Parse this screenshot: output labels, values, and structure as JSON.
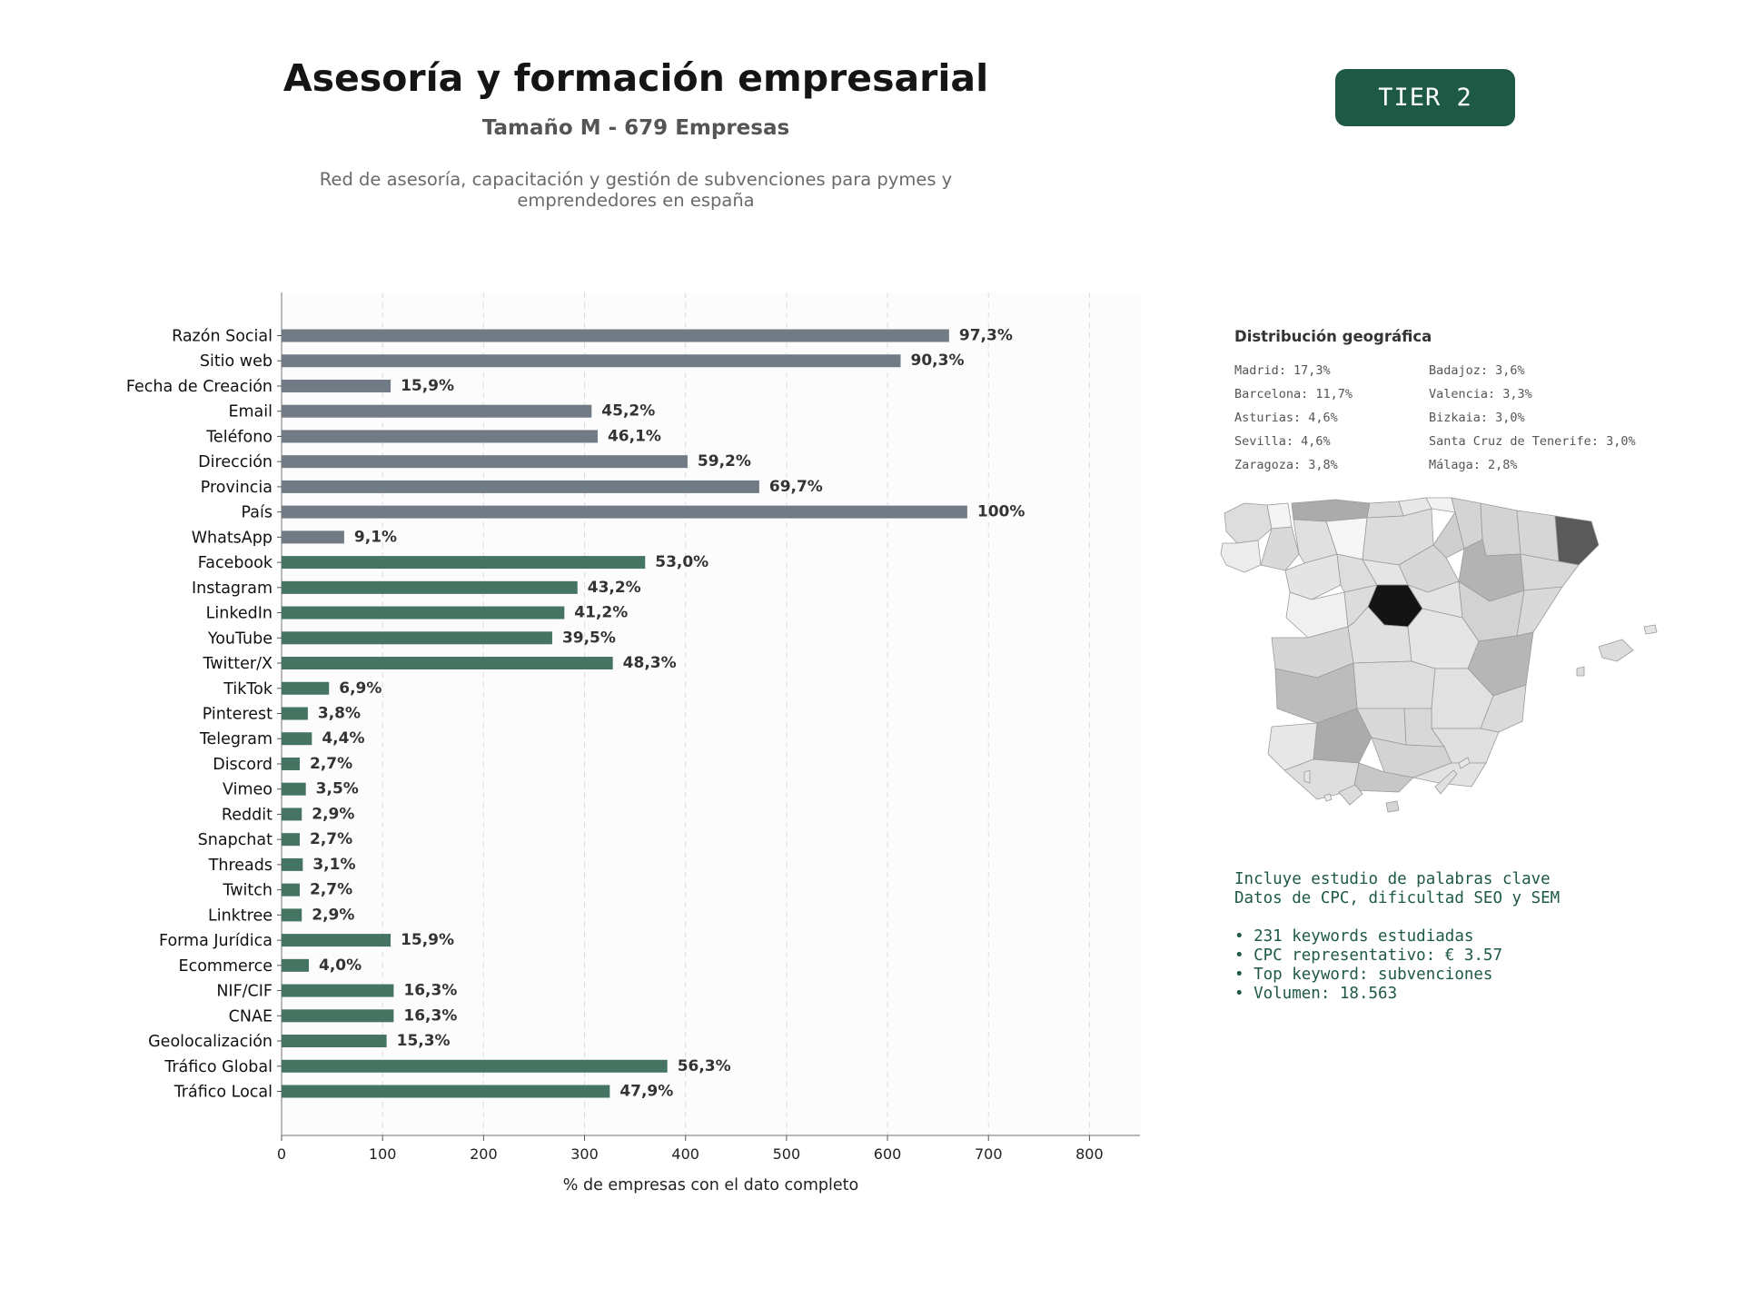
{
  "header": {
    "title": "Asesoría y formación empresarial",
    "subtitle": "Tamaño M - 679 Empresas",
    "description_lines": [
      "Red de asesoría, capacitación y gestión de subvenciones para pymes y",
      "emprendedores en españa"
    ],
    "tier_badge": "TIER 2"
  },
  "colors": {
    "accent": "#1e5946",
    "bar_gray": "#717b85",
    "bar_green": "#457462",
    "text_green": "#1e5946"
  },
  "chart_data": {
    "type": "bar",
    "orientation": "horizontal",
    "xlabel": "% de empresas con el dato completo",
    "ylabel": "",
    "xlim": [
      0,
      850
    ],
    "xticks": [
      0,
      100,
      200,
      300,
      400,
      500,
      600,
      700,
      800
    ],
    "grid": "vertical-dashed",
    "categories": [
      "Razón Social",
      "Sitio web",
      "Fecha de Creación",
      "Email",
      "Teléfono",
      "Dirección",
      "Provincia",
      "País",
      "WhatsApp",
      "Facebook",
      "Instagram",
      "LinkedIn",
      "YouTube",
      "Twitter/X",
      "TikTok",
      "Pinterest",
      "Telegram",
      "Discord",
      "Vimeo",
      "Reddit",
      "Snapchat",
      "Threads",
      "Twitch",
      "Linktree",
      "Forma Jurídica",
      "Ecommerce",
      "NIF/CIF",
      "CNAE",
      "Geolocalización",
      "Tráfico Global",
      "Tráfico Local"
    ],
    "values": [
      661,
      613,
      108,
      307,
      313,
      402,
      473,
      679,
      62,
      360,
      293,
      280,
      268,
      328,
      47,
      26,
      30,
      18,
      24,
      20,
      18,
      21,
      18,
      20,
      108,
      27,
      111,
      111,
      104,
      382,
      325
    ],
    "labels": [
      "97,3%",
      "90,3%",
      "15,9%",
      "45,2%",
      "46,1%",
      "59,2%",
      "69,7%",
      "100%",
      "9,1%",
      "53,0%",
      "43,2%",
      "41,2%",
      "39,5%",
      "48,3%",
      "6,9%",
      "3,8%",
      "4,4%",
      "2,7%",
      "3,5%",
      "2,9%",
      "2,7%",
      "3,1%",
      "2,7%",
      "2,9%",
      "15,9%",
      "4,0%",
      "16,3%",
      "16,3%",
      "15,3%",
      "56,3%",
      "47,9%"
    ],
    "bar_color_groups": [
      "gray",
      "gray",
      "gray",
      "gray",
      "gray",
      "gray",
      "gray",
      "gray",
      "gray",
      "green",
      "green",
      "green",
      "green",
      "green",
      "green",
      "green",
      "green",
      "green",
      "green",
      "green",
      "green",
      "green",
      "green",
      "green",
      "green",
      "green",
      "green",
      "green",
      "green",
      "green",
      "green"
    ]
  },
  "geo": {
    "title": "Distribución geográfica",
    "items": [
      "Madrid: 17,3%",
      "Barcelona: 11,7%",
      "Asturias: 4,6%",
      "Sevilla: 4,6%",
      "Zaragoza: 3,8%",
      "Badajoz: 3,6%",
      "Valencia: 3,3%",
      "Bizkaia: 3,0%",
      "Santa Cruz de Tenerife: 3,0%",
      "Málaga: 2,8%"
    ]
  },
  "keywords": {
    "intro_lines": [
      "Incluye estudio de palabras clave",
      "Datos de CPC, dificultad SEO y SEM"
    ],
    "bullets": [
      "• 231 keywords estudiadas",
      "• CPC representativo: € 3.57",
      "• Top keyword: subvenciones",
      "• Volumen: 18.563"
    ]
  }
}
